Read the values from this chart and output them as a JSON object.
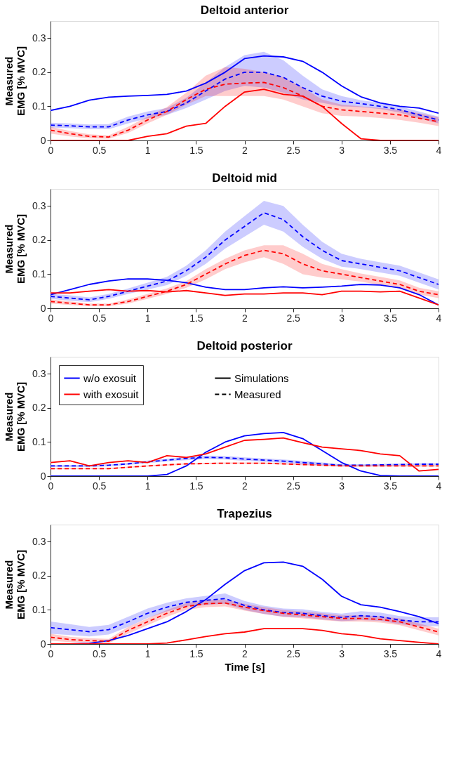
{
  "chart_data": [
    {
      "type": "line",
      "title": "Deltoid anterior",
      "ylabel": "Measured EMG [% MVC]",
      "x": [
        0,
        0.2,
        0.4,
        0.6,
        0.8,
        1.0,
        1.2,
        1.4,
        1.6,
        1.8,
        2.0,
        2.2,
        2.4,
        2.6,
        2.8,
        3.0,
        3.2,
        3.4,
        3.6,
        3.8,
        4.0
      ],
      "xlim": [
        0,
        4
      ],
      "xticks": [
        0,
        0.5,
        1,
        1.5,
        2,
        2.5,
        3,
        3.5,
        4
      ],
      "ylim": [
        0,
        0.35
      ],
      "yticks": [
        0,
        0.1,
        0.2,
        0.3
      ],
      "grid": false,
      "legend": false,
      "marker": "none",
      "series": [
        {
          "color": "#0000ff",
          "line_style": "solid",
          "values": [
            0.088,
            0.1,
            0.118,
            0.127,
            0.13,
            0.132,
            0.135,
            0.145,
            0.168,
            0.2,
            0.24,
            0.248,
            0.245,
            0.232,
            0.2,
            0.16,
            0.128,
            0.11,
            0.1,
            0.095,
            0.08
          ]
        },
        {
          "color": "#0000ff",
          "line_style": "dashed",
          "values": [
            0.045,
            0.043,
            0.04,
            0.04,
            0.06,
            0.075,
            0.085,
            0.11,
            0.145,
            0.18,
            0.2,
            0.2,
            0.185,
            0.155,
            0.13,
            0.115,
            0.108,
            0.1,
            0.09,
            0.075,
            0.06
          ],
          "lower": [
            0.038,
            0.036,
            0.033,
            0.033,
            0.05,
            0.065,
            0.075,
            0.095,
            0.12,
            0.145,
            0.16,
            0.155,
            0.14,
            0.12,
            0.11,
            0.1,
            0.098,
            0.092,
            0.082,
            0.065,
            0.05
          ],
          "upper": [
            0.052,
            0.05,
            0.047,
            0.048,
            0.07,
            0.085,
            0.095,
            0.125,
            0.17,
            0.215,
            0.25,
            0.26,
            0.235,
            0.19,
            0.15,
            0.13,
            0.118,
            0.11,
            0.1,
            0.085,
            0.07
          ]
        },
        {
          "color": "#ff0000",
          "line_style": "solid",
          "values": [
            0,
            0,
            0,
            0,
            0,
            0.012,
            0.02,
            0.042,
            0.05,
            0.1,
            0.142,
            0.15,
            0.135,
            0.13,
            0.1,
            0.05,
            0.005,
            0,
            0,
            0,
            0
          ]
        },
        {
          "color": "#ff0000",
          "line_style": "dashed",
          "values": [
            0.03,
            0.02,
            0.012,
            0.01,
            0.03,
            0.06,
            0.085,
            0.12,
            0.15,
            0.165,
            0.168,
            0.17,
            0.155,
            0.13,
            0.1,
            0.09,
            0.085,
            0.08,
            0.075,
            0.065,
            0.055
          ],
          "lower": [
            0.02,
            0.012,
            0.006,
            0.005,
            0.022,
            0.05,
            0.075,
            0.105,
            0.13,
            0.13,
            0.13,
            0.13,
            0.12,
            0.1,
            0.08,
            0.072,
            0.07,
            0.066,
            0.06,
            0.052,
            0.042
          ],
          "upper": [
            0.04,
            0.028,
            0.018,
            0.015,
            0.04,
            0.07,
            0.098,
            0.14,
            0.19,
            0.215,
            0.21,
            0.2,
            0.185,
            0.155,
            0.12,
            0.105,
            0.1,
            0.095,
            0.09,
            0.08,
            0.068
          ]
        }
      ]
    },
    {
      "type": "line",
      "title": "Deltoid mid",
      "ylabel": "Measured EMG [% MVC]",
      "x": [
        0,
        0.2,
        0.4,
        0.6,
        0.8,
        1.0,
        1.2,
        1.4,
        1.6,
        1.8,
        2.0,
        2.2,
        2.4,
        2.6,
        2.8,
        3.0,
        3.2,
        3.4,
        3.6,
        3.8,
        4.0
      ],
      "xlim": [
        0,
        4
      ],
      "xticks": [
        0,
        0.5,
        1,
        1.5,
        2,
        2.5,
        3,
        3.5,
        4
      ],
      "ylim": [
        0,
        0.35
      ],
      "yticks": [
        0,
        0.1,
        0.2,
        0.3
      ],
      "grid": false,
      "legend": false,
      "marker": "none",
      "series": [
        {
          "color": "#0000ff",
          "line_style": "solid",
          "values": [
            0.04,
            0.055,
            0.07,
            0.08,
            0.086,
            0.086,
            0.082,
            0.075,
            0.062,
            0.055,
            0.055,
            0.06,
            0.063,
            0.06,
            0.062,
            0.065,
            0.07,
            0.068,
            0.06,
            0.04,
            0.01
          ]
        },
        {
          "color": "#0000ff",
          "line_style": "dashed",
          "values": [
            0.035,
            0.03,
            0.025,
            0.035,
            0.05,
            0.065,
            0.08,
            0.11,
            0.15,
            0.2,
            0.24,
            0.28,
            0.26,
            0.21,
            0.17,
            0.14,
            0.13,
            0.12,
            0.11,
            0.09,
            0.07
          ],
          "lower": [
            0.028,
            0.022,
            0.018,
            0.028,
            0.042,
            0.055,
            0.068,
            0.095,
            0.13,
            0.175,
            0.21,
            0.245,
            0.225,
            0.18,
            0.145,
            0.122,
            0.115,
            0.105,
            0.095,
            0.075,
            0.055
          ],
          "upper": [
            0.042,
            0.038,
            0.032,
            0.042,
            0.058,
            0.075,
            0.092,
            0.125,
            0.17,
            0.225,
            0.27,
            0.315,
            0.3,
            0.245,
            0.195,
            0.16,
            0.145,
            0.135,
            0.125,
            0.105,
            0.085
          ]
        },
        {
          "color": "#ff0000",
          "line_style": "solid",
          "values": [
            0.045,
            0.045,
            0.05,
            0.055,
            0.05,
            0.052,
            0.048,
            0.052,
            0.045,
            0.038,
            0.042,
            0.042,
            0.045,
            0.045,
            0.04,
            0.05,
            0.05,
            0.048,
            0.05,
            0.03,
            0.01
          ]
        },
        {
          "color": "#ff0000",
          "line_style": "dashed",
          "values": [
            0.02,
            0.015,
            0.01,
            0.01,
            0.02,
            0.035,
            0.05,
            0.07,
            0.1,
            0.13,
            0.155,
            0.17,
            0.16,
            0.13,
            0.11,
            0.1,
            0.09,
            0.08,
            0.07,
            0.05,
            0.04
          ],
          "lower": [
            0.014,
            0.01,
            0.006,
            0.006,
            0.014,
            0.028,
            0.042,
            0.06,
            0.085,
            0.115,
            0.135,
            0.15,
            0.13,
            0.1,
            0.09,
            0.085,
            0.078,
            0.068,
            0.058,
            0.04,
            0.03
          ],
          "upper": [
            0.026,
            0.02,
            0.014,
            0.014,
            0.026,
            0.042,
            0.058,
            0.08,
            0.115,
            0.145,
            0.17,
            0.185,
            0.185,
            0.16,
            0.13,
            0.115,
            0.102,
            0.092,
            0.082,
            0.06,
            0.05
          ]
        }
      ]
    },
    {
      "type": "line",
      "title": "Deltoid posterior",
      "ylabel": "Measured EMG [% MVC]",
      "x": [
        0,
        0.2,
        0.4,
        0.6,
        0.8,
        1.0,
        1.2,
        1.4,
        1.6,
        1.8,
        2.0,
        2.2,
        2.4,
        2.6,
        2.8,
        3.0,
        3.2,
        3.4,
        3.6,
        3.8,
        4.0
      ],
      "xlim": [
        0,
        4
      ],
      "xticks": [
        0,
        0.5,
        1,
        1.5,
        2,
        2.5,
        3,
        3.5,
        4
      ],
      "ylim": [
        0,
        0.35
      ],
      "yticks": [
        0,
        0.1,
        0.2,
        0.3
      ],
      "grid": false,
      "legend": "top left",
      "marker": "none",
      "annotations": [
        "Simulations",
        "Measured"
      ],
      "series": [
        {
          "name": "w/o exosuit",
          "color": "#0000ff",
          "line_style": "solid",
          "values": [
            0,
            0,
            0,
            0,
            0,
            0,
            0.005,
            0.03,
            0.07,
            0.1,
            0.118,
            0.125,
            0.128,
            0.11,
            0.075,
            0.04,
            0.015,
            0.002,
            0,
            0,
            0
          ]
        },
        {
          "color": "#0000ff",
          "line_style": "dashed",
          "values": [
            0.03,
            0.03,
            0.03,
            0.032,
            0.036,
            0.042,
            0.047,
            0.052,
            0.055,
            0.054,
            0.05,
            0.047,
            0.044,
            0.04,
            0.036,
            0.032,
            0.032,
            0.033,
            0.034,
            0.035,
            0.035
          ],
          "lower": [
            0.027,
            0.027,
            0.027,
            0.029,
            0.033,
            0.038,
            0.043,
            0.047,
            0.05,
            0.049,
            0.045,
            0.042,
            0.039,
            0.035,
            0.032,
            0.029,
            0.029,
            0.03,
            0.031,
            0.032,
            0.032
          ],
          "upper": [
            0.033,
            0.033,
            0.033,
            0.035,
            0.039,
            0.046,
            0.051,
            0.057,
            0.06,
            0.059,
            0.055,
            0.052,
            0.049,
            0.045,
            0.04,
            0.035,
            0.035,
            0.036,
            0.037,
            0.038,
            0.038
          ]
        },
        {
          "name": "with exosuit",
          "color": "#ff0000",
          "line_style": "solid",
          "values": [
            0.04,
            0.045,
            0.03,
            0.04,
            0.045,
            0.04,
            0.06,
            0.055,
            0.065,
            0.085,
            0.105,
            0.108,
            0.112,
            0.098,
            0.085,
            0.08,
            0.075,
            0.065,
            0.06,
            0.015,
            0.02
          ]
        },
        {
          "color": "#ff0000",
          "line_style": "dashed",
          "values": [
            0.022,
            0.022,
            0.022,
            0.022,
            0.026,
            0.03,
            0.033,
            0.036,
            0.037,
            0.038,
            0.038,
            0.038,
            0.036,
            0.034,
            0.032,
            0.03,
            0.03,
            0.03,
            0.03,
            0.03,
            0.03
          ],
          "lower": [
            0.02,
            0.02,
            0.02,
            0.02,
            0.024,
            0.028,
            0.031,
            0.034,
            0.035,
            0.036,
            0.036,
            0.036,
            0.034,
            0.032,
            0.03,
            0.028,
            0.028,
            0.028,
            0.028,
            0.028,
            0.028
          ],
          "upper": [
            0.024,
            0.024,
            0.024,
            0.024,
            0.028,
            0.032,
            0.035,
            0.038,
            0.039,
            0.04,
            0.04,
            0.04,
            0.038,
            0.036,
            0.034,
            0.032,
            0.032,
            0.032,
            0.032,
            0.032,
            0.032
          ]
        }
      ]
    },
    {
      "type": "line",
      "title": "Trapezius",
      "ylabel": "Measured EMG [% MVC]",
      "xlabel": "Time [s]",
      "x": [
        0,
        0.2,
        0.4,
        0.6,
        0.8,
        1.0,
        1.2,
        1.4,
        1.6,
        1.8,
        2.0,
        2.2,
        2.4,
        2.6,
        2.8,
        3.0,
        3.2,
        3.4,
        3.6,
        3.8,
        4.0
      ],
      "xlim": [
        0,
        4
      ],
      "xticks": [
        0,
        0.5,
        1,
        1.5,
        2,
        2.5,
        3,
        3.5,
        4
      ],
      "ylim": [
        0,
        0.35
      ],
      "yticks": [
        0,
        0.1,
        0.2,
        0.3
      ],
      "grid": false,
      "legend": false,
      "marker": "none",
      "series": [
        {
          "color": "#0000ff",
          "line_style": "solid",
          "values": [
            0,
            0,
            0.002,
            0.01,
            0.025,
            0.045,
            0.065,
            0.095,
            0.13,
            0.175,
            0.215,
            0.238,
            0.24,
            0.228,
            0.19,
            0.14,
            0.115,
            0.108,
            0.095,
            0.08,
            0.06
          ]
        },
        {
          "color": "#0000ff",
          "line_style": "dashed",
          "values": [
            0.048,
            0.042,
            0.036,
            0.042,
            0.065,
            0.09,
            0.108,
            0.122,
            0.128,
            0.133,
            0.113,
            0.1,
            0.092,
            0.09,
            0.083,
            0.078,
            0.083,
            0.08,
            0.07,
            0.065,
            0.065
          ],
          "lower": [
            0.03,
            0.026,
            0.022,
            0.028,
            0.05,
            0.076,
            0.095,
            0.11,
            0.115,
            0.118,
            0.1,
            0.088,
            0.08,
            0.078,
            0.072,
            0.067,
            0.07,
            0.068,
            0.058,
            0.052,
            0.052
          ],
          "upper": [
            0.066,
            0.058,
            0.05,
            0.056,
            0.08,
            0.104,
            0.121,
            0.134,
            0.141,
            0.148,
            0.126,
            0.112,
            0.104,
            0.102,
            0.094,
            0.089,
            0.096,
            0.092,
            0.082,
            0.078,
            0.078
          ]
        },
        {
          "color": "#ff0000",
          "line_style": "solid",
          "values": [
            0,
            0,
            0,
            0,
            0,
            0,
            0.003,
            0.012,
            0.022,
            0.03,
            0.035,
            0.045,
            0.045,
            0.045,
            0.04,
            0.03,
            0.025,
            0.015,
            0.01,
            0.005,
            0
          ]
        },
        {
          "color": "#ff0000",
          "line_style": "dashed",
          "values": [
            0.02,
            0.013,
            0.01,
            0.008,
            0.04,
            0.065,
            0.09,
            0.11,
            0.118,
            0.12,
            0.108,
            0.098,
            0.09,
            0.085,
            0.08,
            0.075,
            0.075,
            0.072,
            0.065,
            0.05,
            0.035
          ],
          "lower": [
            0.01,
            0.005,
            0.003,
            0.002,
            0.03,
            0.055,
            0.08,
            0.1,
            0.108,
            0.11,
            0.098,
            0.088,
            0.08,
            0.075,
            0.07,
            0.066,
            0.066,
            0.063,
            0.055,
            0.04,
            0.025
          ],
          "upper": [
            0.03,
            0.021,
            0.017,
            0.015,
            0.05,
            0.075,
            0.1,
            0.12,
            0.128,
            0.13,
            0.118,
            0.108,
            0.1,
            0.095,
            0.09,
            0.084,
            0.084,
            0.081,
            0.075,
            0.06,
            0.045
          ]
        }
      ]
    }
  ]
}
